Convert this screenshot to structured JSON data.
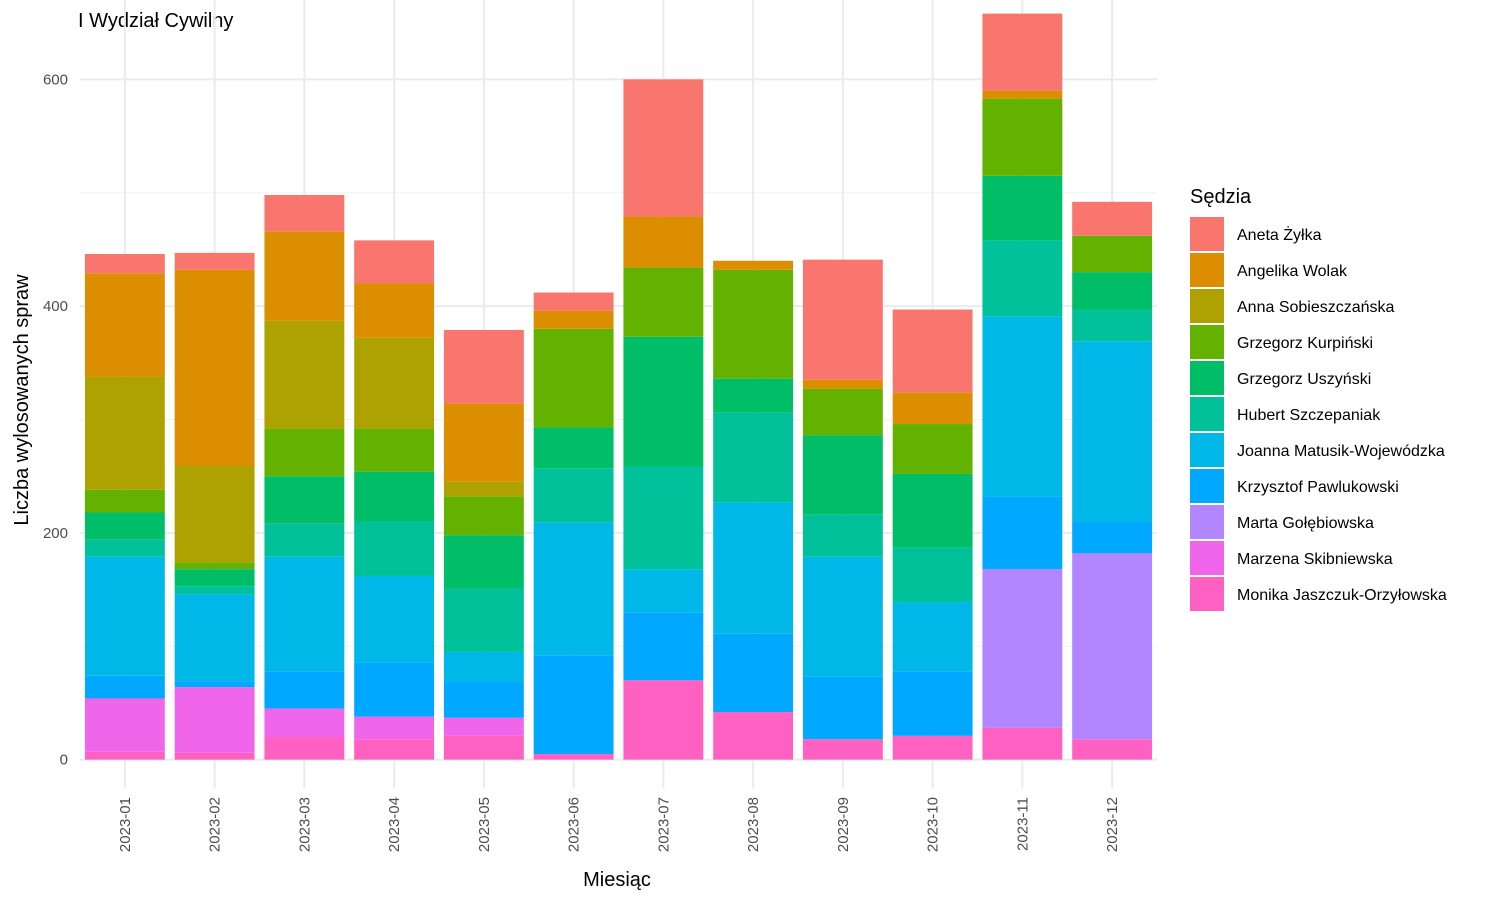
{
  "chart_data": {
    "type": "bar",
    "stacked": true,
    "title": "I Wydział Cywilny",
    "xlabel": "Miesiąc",
    "ylabel": "Liczba wylosowanych spraw",
    "ylim": [
      -25,
      670
    ],
    "yticks": [
      0,
      200,
      400,
      600
    ],
    "grid": true,
    "legend_position": "right",
    "legend_title": "Sędzia",
    "categories": [
      "2023-01",
      "2023-02",
      "2023-03",
      "2023-04",
      "2023-05",
      "2023-06",
      "2023-07",
      "2023-08",
      "2023-09",
      "2023-10",
      "2023-11",
      "2023-12"
    ],
    "series": [
      {
        "name": "Monika Jaszczuk-Orzyłowska",
        "color": "#FF61C3",
        "values": [
          7,
          6,
          20,
          18,
          21,
          5,
          70,
          42,
          18,
          21,
          28,
          18
        ]
      },
      {
        "name": "Marzena Skibniewska",
        "color": "#F066EA",
        "values": [
          47,
          58,
          25,
          20,
          16,
          0,
          0,
          0,
          0,
          0,
          0,
          0
        ]
      },
      {
        "name": "Marta Gołębiowska",
        "color": "#B385FF",
        "values": [
          0,
          0,
          0,
          0,
          0,
          0,
          0,
          0,
          0,
          0,
          140,
          164
        ]
      },
      {
        "name": "Krzysztof Pawlukowski",
        "color": "#00A9FF",
        "values": [
          20,
          5,
          33,
          48,
          32,
          87,
          60,
          69,
          55,
          57,
          64,
          28
        ]
      },
      {
        "name": "Joanna Matusik-Wojewódzka",
        "color": "#00B8E7",
        "values": [
          105,
          77,
          101,
          76,
          26,
          117,
          38,
          116,
          106,
          61,
          159,
          159
        ]
      },
      {
        "name": "Hubert Szczepaniak",
        "color": "#00C19A",
        "values": [
          15,
          7,
          29,
          48,
          56,
          48,
          91,
          79,
          37,
          48,
          67,
          28
        ]
      },
      {
        "name": "Grzegorz Uszyński",
        "color": "#00BE67",
        "values": [
          24,
          15,
          42,
          44,
          47,
          36,
          114,
          30,
          70,
          65,
          57,
          33
        ]
      },
      {
        "name": "Grzegorz Kurpiński",
        "color": "#64B200",
        "values": [
          20,
          6,
          42,
          38,
          34,
          87,
          61,
          96,
          41,
          44,
          68,
          32
        ]
      },
      {
        "name": "Anna Sobieszczańska",
        "color": "#AEA200",
        "values": [
          100,
          85,
          95,
          80,
          13,
          0,
          0,
          0,
          0,
          0,
          0,
          0
        ]
      },
      {
        "name": "Angelika Wolak",
        "color": "#DB8E00",
        "values": [
          91,
          173,
          79,
          48,
          69,
          16,
          45,
          8,
          8,
          28,
          7,
          0
        ]
      },
      {
        "name": "Aneta Żyłka",
        "color": "#F8766D",
        "values": [
          17,
          15,
          32,
          38,
          65,
          16,
          121,
          0,
          106,
          73,
          68,
          30
        ]
      }
    ]
  }
}
